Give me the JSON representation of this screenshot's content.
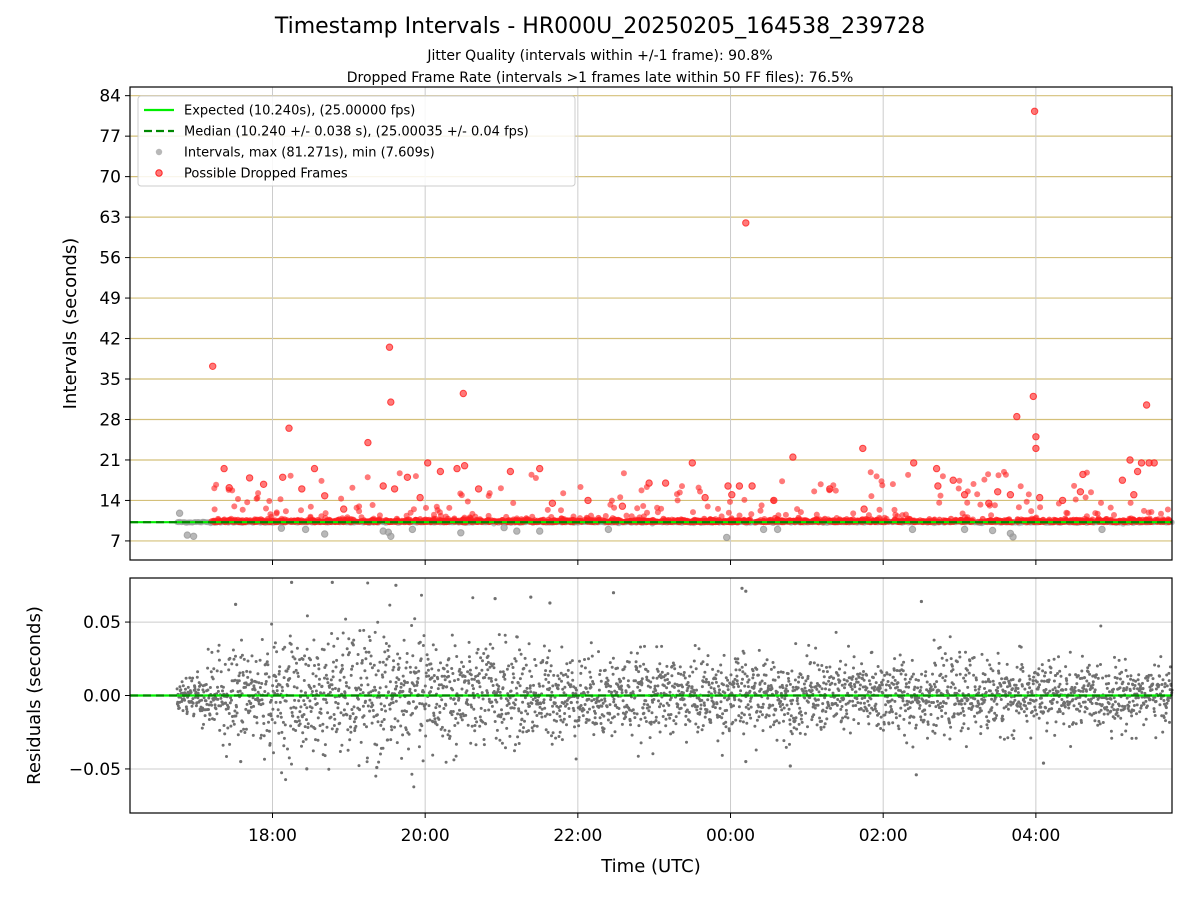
{
  "title": "Timestamp Intervals - HR000U_20250205_164538_239728",
  "subtitle_1": "Jitter Quality (intervals within +/-1 frame): 90.8%",
  "subtitle_2": "Dropped Frame Rate (intervals >1 frames late within 50 FF files): 76.5%",
  "colors": {
    "expected": "#00ee00",
    "median": "#008800",
    "intervals": "#9a9a9a",
    "dropped": "#ff2020",
    "residuals": "#707070",
    "interval_grid": "#d4c07a",
    "grid": "#cccccc"
  },
  "chart_data": [
    {
      "type": "scatter",
      "name": "intervals",
      "xlabel": "",
      "ylabel": "Intervals (seconds)",
      "xlim": [
        "2025-02-05T16:08",
        "2025-02-06T05:47"
      ],
      "ylim": [
        3.7,
        85.5
      ],
      "yticks": [
        7,
        14,
        21,
        28,
        35,
        42,
        49,
        56,
        63,
        70,
        77,
        84
      ],
      "ytick_labels": [
        "7",
        "14",
        "21",
        "28",
        "35",
        "42",
        "49",
        "56",
        "63",
        "70",
        "77",
        "84"
      ],
      "grid": "horizontal at y ticks, vertical at x ticks",
      "legend_position": "top-left",
      "legend": [
        "Expected (10.240s), (25.00000 fps)",
        "Median (10.240 +/- 0.038 s), (25.00035 +/- 0.04 fps)",
        "Intervals, max (81.271s), min (7.609s)",
        "Possible Dropped Frames"
      ],
      "expected_interval": 10.24,
      "median_interval": 10.24,
      "baseline_range": [
        "2025-02-05T16:45",
        "2025-02-06T05:47"
      ],
      "series": [
        {
          "name": "Possible Dropped Frames",
          "points": [
            [
              "2025-02-05T17:13",
              37.2
            ],
            [
              "2025-02-05T17:22",
              19.5
            ],
            [
              "2025-02-05T17:26",
              16.2
            ],
            [
              "2025-02-05T17:42",
              17.9
            ],
            [
              "2025-02-05T17:53",
              16.8
            ],
            [
              "2025-02-05T18:08",
              18.0
            ],
            [
              "2025-02-05T18:13",
              26.5
            ],
            [
              "2025-02-05T18:23",
              16.0
            ],
            [
              "2025-02-05T18:33",
              19.5
            ],
            [
              "2025-02-05T18:41",
              14.8
            ],
            [
              "2025-02-05T18:56",
              12.5
            ],
            [
              "2025-02-05T19:15",
              24.0
            ],
            [
              "2025-02-05T19:27",
              16.5
            ],
            [
              "2025-02-05T19:32",
              40.5
            ],
            [
              "2025-02-05T19:33",
              31.0
            ],
            [
              "2025-02-05T19:36",
              16.0
            ],
            [
              "2025-02-05T19:46",
              18.0
            ],
            [
              "2025-02-05T19:56",
              14.5
            ],
            [
              "2025-02-05T20:02",
              20.5
            ],
            [
              "2025-02-05T20:12",
              19.0
            ],
            [
              "2025-02-05T20:25",
              19.5
            ],
            [
              "2025-02-05T20:30",
              32.5
            ],
            [
              "2025-02-05T20:31",
              20.0
            ],
            [
              "2025-02-05T20:42",
              16.0
            ],
            [
              "2025-02-05T21:07",
              19.0
            ],
            [
              "2025-02-05T21:30",
              19.5
            ],
            [
              "2025-02-05T21:40",
              13.5
            ],
            [
              "2025-02-05T22:08",
              14.0
            ],
            [
              "2025-02-05T22:35",
              13.0
            ],
            [
              "2025-02-05T22:56",
              17.0
            ],
            [
              "2025-02-05T23:09",
              17.0
            ],
            [
              "2025-02-05T23:30",
              20.5
            ],
            [
              "2025-02-05T23:40",
              14.5
            ],
            [
              "2025-02-05T23:58",
              16.5
            ],
            [
              "2025-02-06T00:01",
              15.0
            ],
            [
              "2025-02-06T00:07",
              16.5
            ],
            [
              "2025-02-06T00:12",
              62.0
            ],
            [
              "2025-02-06T00:17",
              16.5
            ],
            [
              "2025-02-06T00:34",
              14.0
            ],
            [
              "2025-02-06T00:49",
              21.5
            ],
            [
              "2025-02-06T01:18",
              16.0
            ],
            [
              "2025-02-06T01:44",
              23.0
            ],
            [
              "2025-02-06T01:45",
              12.5
            ],
            [
              "2025-02-06T02:24",
              20.5
            ],
            [
              "2025-02-06T02:42",
              19.5
            ],
            [
              "2025-02-06T02:43",
              16.5
            ],
            [
              "2025-02-06T02:55",
              17.5
            ],
            [
              "2025-02-06T03:04",
              15.0
            ],
            [
              "2025-02-06T03:23",
              13.5
            ],
            [
              "2025-02-06T03:30",
              15.5
            ],
            [
              "2025-02-06T03:40",
              15.0
            ],
            [
              "2025-02-06T03:45",
              28.5
            ],
            [
              "2025-02-06T03:58",
              32.0
            ],
            [
              "2025-02-06T03:59",
              81.3
            ],
            [
              "2025-02-06T04:00",
              25.0
            ],
            [
              "2025-02-06T04:00",
              23.0
            ],
            [
              "2025-02-06T04:03",
              14.5
            ],
            [
              "2025-02-06T04:21",
              14.0
            ],
            [
              "2025-02-06T04:35",
              15.5
            ],
            [
              "2025-02-06T04:37",
              18.5
            ],
            [
              "2025-02-06T05:08",
              17.5
            ],
            [
              "2025-02-06T05:14",
              21.0
            ],
            [
              "2025-02-06T05:17",
              15.0
            ],
            [
              "2025-02-06T05:20",
              19.0
            ],
            [
              "2025-02-06T05:23",
              20.5
            ],
            [
              "2025-02-06T05:27",
              30.5
            ],
            [
              "2025-02-06T05:29",
              20.5
            ],
            [
              "2025-02-06T05:33",
              20.5
            ]
          ]
        },
        {
          "name": "Intervals",
          "points": [
            [
              "2025-02-05T16:47",
              11.8
            ],
            [
              "2025-02-05T16:53",
              8.0
            ],
            [
              "2025-02-05T16:58",
              7.8
            ],
            [
              "2025-02-05T18:07",
              9.2
            ],
            [
              "2025-02-05T18:26",
              9.0
            ],
            [
              "2025-02-05T18:41",
              8.2
            ],
            [
              "2025-02-05T19:27",
              8.7
            ],
            [
              "2025-02-05T19:31",
              8.5
            ],
            [
              "2025-02-05T19:33",
              7.8
            ],
            [
              "2025-02-05T19:50",
              9.0
            ],
            [
              "2025-02-05T20:28",
              8.4
            ],
            [
              "2025-02-05T21:02",
              9.3
            ],
            [
              "2025-02-05T21:12",
              8.7
            ],
            [
              "2025-02-05T21:30",
              8.7
            ],
            [
              "2025-02-05T22:24",
              9.0
            ],
            [
              "2025-02-05T23:57",
              7.6
            ],
            [
              "2025-02-06T00:26",
              9.0
            ],
            [
              "2025-02-06T00:37",
              9.0
            ],
            [
              "2025-02-06T02:23",
              9.0
            ],
            [
              "2025-02-06T03:04",
              9.0
            ],
            [
              "2025-02-06T03:26",
              8.8
            ],
            [
              "2025-02-06T03:40",
              8.3
            ],
            [
              "2025-02-06T03:42",
              7.7
            ],
            [
              "2025-02-06T04:52",
              9.0
            ]
          ]
        }
      ]
    },
    {
      "type": "scatter",
      "name": "residuals",
      "xlabel": "Time (UTC)",
      "ylabel": "Residuals (seconds)",
      "xlim": [
        "2025-02-05T16:08",
        "2025-02-06T05:47"
      ],
      "ylim": [
        -0.08,
        0.08
      ],
      "yticks": [
        -0.05,
        0.0,
        0.05
      ],
      "ytick_labels": [
        "−0.05",
        "0.00",
        "0.05"
      ],
      "xticks": [
        "2025-02-05T18:00",
        "2025-02-05T20:00",
        "2025-02-05T22:00",
        "2025-02-06T00:00",
        "2025-02-06T02:00",
        "2025-02-06T04:00"
      ],
      "xtick_labels": [
        "18:00",
        "20:00",
        "22:00",
        "00:00",
        "02:00",
        "04:00"
      ],
      "grid": "on",
      "zero_line": 0.0,
      "x_range": [
        "2025-02-05T16:45",
        "2025-02-06T05:47"
      ],
      "spread_sd_by_time": [
        [
          "2025-02-05T16:45",
          0.005
        ],
        [
          "2025-02-05T17:30",
          0.017
        ],
        [
          "2025-02-05T18:30",
          0.02
        ],
        [
          "2025-02-05T19:30",
          0.022
        ],
        [
          "2025-02-05T20:30",
          0.019
        ],
        [
          "2025-02-05T22:00",
          0.014
        ],
        [
          "2025-02-06T00:00",
          0.013
        ],
        [
          "2025-02-06T02:00",
          0.013
        ],
        [
          "2025-02-06T04:00",
          0.012
        ],
        [
          "2025-02-06T05:47",
          0.01
        ]
      ],
      "outliers": [
        [
          "2025-02-05T18:15",
          0.077
        ],
        [
          "2025-02-05T18:47",
          0.077
        ],
        [
          "2025-02-05T19:37",
          0.075
        ],
        [
          "2025-02-05T20:55",
          0.066
        ],
        [
          "2025-02-05T21:23",
          0.067
        ],
        [
          "2025-02-05T21:38",
          0.063
        ],
        [
          "2025-02-05T22:28",
          0.07
        ],
        [
          "2025-02-06T00:09",
          0.073
        ],
        [
          "2025-02-06T00:12",
          0.071
        ],
        [
          "2025-02-06T02:30",
          0.064
        ],
        [
          "2025-02-05T17:31",
          0.062
        ],
        [
          "2025-02-05T18:27",
          -0.05
        ],
        [
          "2025-02-05T19:22",
          -0.049
        ],
        [
          "2025-02-06T00:12",
          -0.045
        ],
        [
          "2025-02-06T00:47",
          -0.048
        ],
        [
          "2025-02-06T02:26",
          -0.054
        ],
        [
          "2025-02-06T04:06",
          -0.046
        ],
        [
          "2025-02-05T17:35",
          -0.045
        ]
      ]
    }
  ]
}
